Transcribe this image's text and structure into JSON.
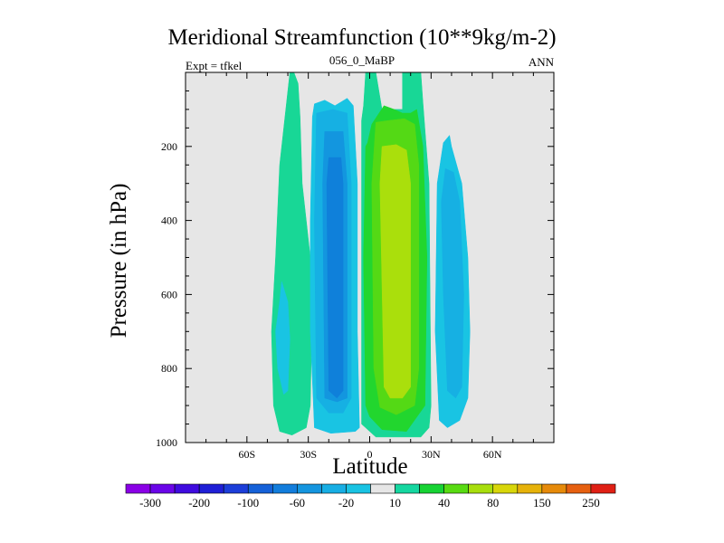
{
  "header": {
    "title": "Meridional Streamfunction (10**9kg/m-2)",
    "left": "Expt = tfkel",
    "center": "056_0_MaBP",
    "right": "ANN"
  },
  "chart_data": {
    "type": "heatmap",
    "title": "Meridional Streamfunction (10**9kg/m-2)",
    "xlabel": "Latitude",
    "ylabel": "Pressure (in hPa)",
    "xlim": [
      -90,
      90
    ],
    "ylim": [
      1000,
      0
    ],
    "y_inverted": true,
    "grid": false,
    "xticks": [
      {
        "value": -60,
        "label": "60S"
      },
      {
        "value": -30,
        "label": "30S"
      },
      {
        "value": 0,
        "label": "0"
      },
      {
        "value": 30,
        "label": "30N"
      },
      {
        "value": 60,
        "label": "60N"
      }
    ],
    "yticks": [
      {
        "value": 200,
        "label": "200"
      },
      {
        "value": 400,
        "label": "400"
      },
      {
        "value": 600,
        "label": "600"
      },
      {
        "value": 800,
        "label": "800"
      },
      {
        "value": 1000,
        "label": "1000"
      }
    ],
    "colorbar": {
      "levels": [
        -300,
        -250,
        -200,
        -150,
        -100,
        -80,
        -60,
        -40,
        -20,
        -10,
        10,
        20,
        40,
        60,
        80,
        100,
        150,
        200,
        250,
        300
      ],
      "labels": [
        "-300",
        "-200",
        "-100",
        "-60",
        "-20",
        "10",
        "40",
        "80",
        "150",
        "250"
      ],
      "colors": [
        "#8a00e6",
        "#6a05e8",
        "#3f0bdf",
        "#1f1fd6",
        "#1c3ed9",
        "#1561d8",
        "#127ddc",
        "#1495df",
        "#17aee4",
        "#19c3e3",
        "#e6e6e6",
        "#15d7a0",
        "#17d334",
        "#58db12",
        "#a8de0d",
        "#d8d60a",
        "#e6b20a",
        "#e68a0a",
        "#e66010",
        "#e02015"
      ]
    },
    "regions": [
      {
        "name": "southern-band",
        "level": "10 to 20",
        "color": "#18d796",
        "outline": [
          [
            -37,
            0
          ],
          [
            -35,
            30
          ],
          [
            -34,
            120
          ],
          [
            -33,
            300
          ],
          [
            -29,
            500
          ],
          [
            -28,
            600
          ],
          [
            -29,
            900
          ],
          [
            -31,
            960
          ],
          [
            -38,
            980
          ],
          [
            -44,
            970
          ],
          [
            -47,
            900
          ],
          [
            -48,
            700
          ],
          [
            -46,
            500
          ],
          [
            -44,
            250
          ],
          [
            -39,
            0
          ]
        ]
      },
      {
        "name": "southern-core",
        "level": "-10 to -20",
        "color": "#19c4e3",
        "outline": [
          [
            -43,
            565
          ],
          [
            -40,
            620
          ],
          [
            -39,
            720
          ],
          [
            -40,
            860
          ],
          [
            -42,
            870
          ],
          [
            -45,
            800
          ],
          [
            -46,
            700
          ],
          [
            -44,
            620
          ]
        ]
      },
      {
        "name": "southern-cell-outer",
        "level": "-10 to -20",
        "color": "#19c4e3",
        "outline": [
          [
            -27,
            85
          ],
          [
            -22,
            75
          ],
          [
            -17,
            90
          ],
          [
            -11,
            70
          ],
          [
            -8,
            90
          ],
          [
            -6,
            300
          ],
          [
            -6,
            700
          ],
          [
            -5,
            960
          ],
          [
            -7,
            970
          ],
          [
            -19,
            975
          ],
          [
            -27,
            960
          ],
          [
            -29,
            700
          ],
          [
            -29,
            400
          ],
          [
            -28,
            120
          ]
        ]
      },
      {
        "name": "southern-cell-mid",
        "level": "-20 to -40",
        "color": "#16b0e3",
        "outline": [
          [
            -26,
            110
          ],
          [
            -18,
            100
          ],
          [
            -11,
            110
          ],
          [
            -9,
            300
          ],
          [
            -9,
            880
          ],
          [
            -13,
            920
          ],
          [
            -20,
            920
          ],
          [
            -26,
            880
          ],
          [
            -27,
            400
          ]
        ]
      },
      {
        "name": "southern-cell-inner",
        "level": "-40 to -60",
        "color": "#1396df",
        "outline": [
          [
            -22,
            160
          ],
          [
            -13,
            160
          ],
          [
            -11,
            300
          ],
          [
            -11,
            880
          ],
          [
            -16,
            890
          ],
          [
            -22,
            880
          ],
          [
            -23,
            300
          ]
        ]
      },
      {
        "name": "southern-cell-core",
        "level": "-60 to -80",
        "color": "#0f80da",
        "outline": [
          [
            -20,
            230
          ],
          [
            -14,
            230
          ],
          [
            -13,
            300
          ],
          [
            -13,
            860
          ],
          [
            -16,
            880
          ],
          [
            -20,
            860
          ],
          [
            -21,
            300
          ]
        ]
      },
      {
        "name": "northern-cell-outer",
        "level": "10 to 20",
        "color": "#18d796",
        "outline": [
          [
            -2,
            0
          ],
          [
            3,
            0
          ],
          [
            6,
            100
          ],
          [
            16,
            100
          ],
          [
            16,
            0
          ],
          [
            25,
            0
          ],
          [
            26,
            80
          ],
          [
            29,
            300
          ],
          [
            30,
            900
          ],
          [
            29,
            960
          ],
          [
            25,
            985
          ],
          [
            3,
            985
          ],
          [
            -4,
            950
          ],
          [
            -4,
            130
          ],
          [
            -3,
            90
          ]
        ]
      },
      {
        "name": "northern-cell-mid",
        "level": "20 to 40",
        "color": "#22d62e",
        "outline": [
          [
            -1,
            190
          ],
          [
            1,
            140
          ],
          [
            7,
            90
          ],
          [
            12,
            100
          ],
          [
            16,
            110
          ],
          [
            20,
            110
          ],
          [
            23,
            100
          ],
          [
            26,
            200
          ],
          [
            28,
            500
          ],
          [
            27,
            900
          ],
          [
            18,
            970
          ],
          [
            6,
            965
          ],
          [
            0,
            930
          ],
          [
            -2,
            900
          ],
          [
            -3,
            500
          ],
          [
            -2,
            200
          ]
        ]
      },
      {
        "name": "northern-cell-inner",
        "level": "40 to 60",
        "color": "#54d915",
        "outline": [
          [
            3,
            135
          ],
          [
            9,
            130
          ],
          [
            17,
            125
          ],
          [
            22,
            140
          ],
          [
            24,
            250
          ],
          [
            24,
            800
          ],
          [
            22,
            900
          ],
          [
            13,
            925
          ],
          [
            5,
            905
          ],
          [
            2,
            800
          ],
          [
            1,
            300
          ]
        ]
      },
      {
        "name": "northern-cell-core",
        "level": "60 to 80",
        "color": "#aadf0c",
        "outline": [
          [
            6,
            200
          ],
          [
            13,
            195
          ],
          [
            18,
            210
          ],
          [
            20,
            300
          ],
          [
            20,
            850
          ],
          [
            16,
            880
          ],
          [
            10,
            880
          ],
          [
            7,
            850
          ],
          [
            5,
            300
          ]
        ]
      },
      {
        "name": "northern-ferrel-outer",
        "level": "-10 to -20",
        "color": "#19c4e3",
        "outline": [
          [
            36,
            190
          ],
          [
            39,
            170
          ],
          [
            40,
            200
          ],
          [
            45,
            300
          ],
          [
            48,
            500
          ],
          [
            49,
            700
          ],
          [
            48,
            880
          ],
          [
            44,
            940
          ],
          [
            38,
            960
          ],
          [
            34,
            940
          ],
          [
            32,
            700
          ],
          [
            33,
            300
          ]
        ]
      },
      {
        "name": "northern-ferrel-core",
        "level": "-20 to -40",
        "color": "#16b0e3",
        "outline": [
          [
            37,
            260
          ],
          [
            41,
            270
          ],
          [
            44,
            350
          ],
          [
            46,
            600
          ],
          [
            45,
            850
          ],
          [
            42,
            880
          ],
          [
            38,
            860
          ],
          [
            36,
            600
          ],
          [
            35,
            350
          ]
        ]
      }
    ]
  }
}
